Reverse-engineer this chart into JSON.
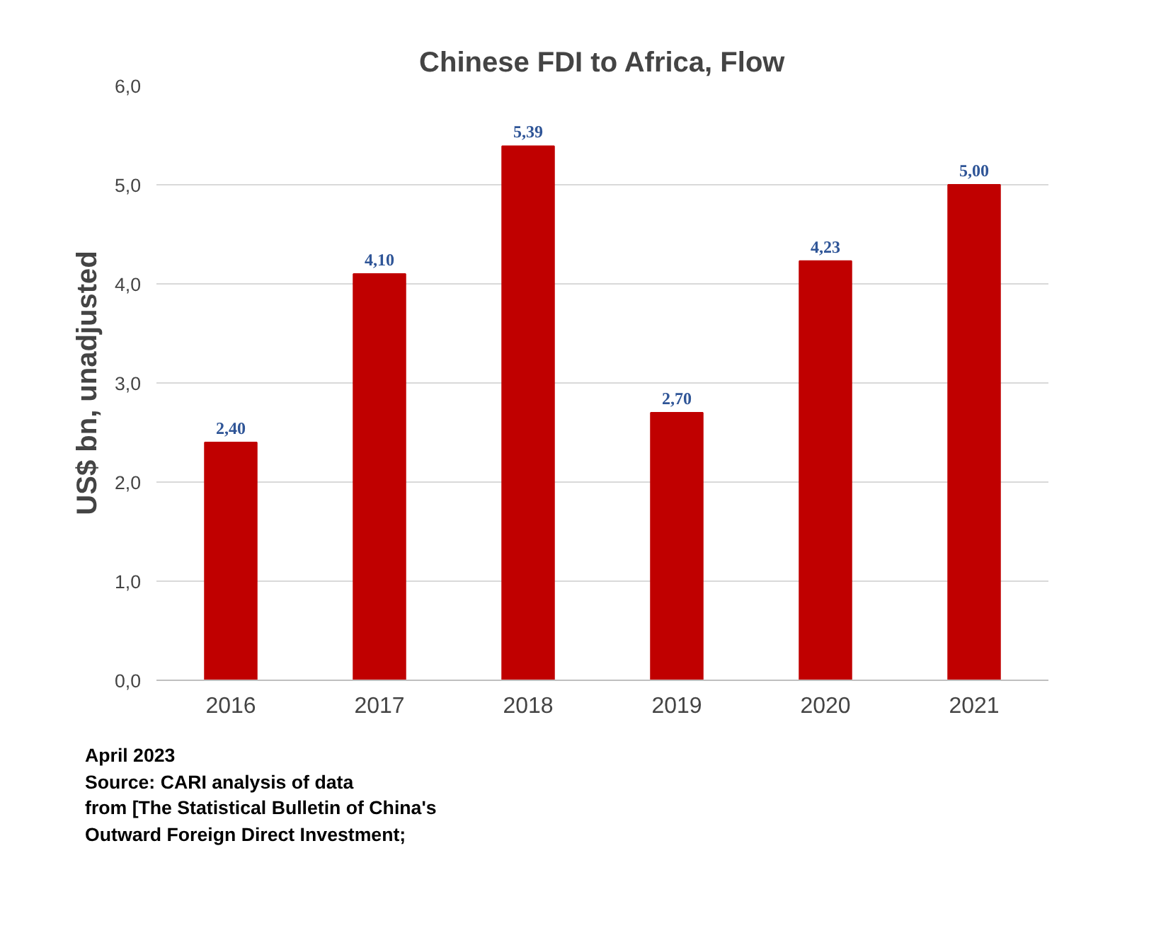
{
  "chart_data": {
    "type": "bar",
    "title": "Chinese FDI to Africa, Flow",
    "ylabel": "US$ bn, unadjusted",
    "categories": [
      "2016",
      "2017",
      "2018",
      "2019",
      "2020",
      "2021"
    ],
    "values": [
      2.4,
      4.1,
      5.39,
      2.7,
      4.23,
      5.0
    ],
    "value_labels": [
      "2,40",
      "4,10",
      "5,39",
      "2,70",
      "4,23",
      "5,00"
    ],
    "color": "#c00000",
    "ylim": [
      0,
      6
    ],
    "yticks": [
      {
        "value": 0,
        "label": "0,0"
      },
      {
        "value": 1,
        "label": "1,0"
      },
      {
        "value": 2,
        "label": "2,0"
      },
      {
        "value": 3,
        "label": "3,0"
      },
      {
        "value": 4,
        "label": "4,0"
      },
      {
        "value": 5,
        "label": "5,0"
      },
      {
        "value": 6,
        "label": "6,0"
      }
    ],
    "grid": "y",
    "annotations": [
      "April 2023",
      "Source: CARI analysis of data",
      "from [The Statistical Bulletin of China's",
      "Outward Foreign Direct Investment;"
    ]
  }
}
